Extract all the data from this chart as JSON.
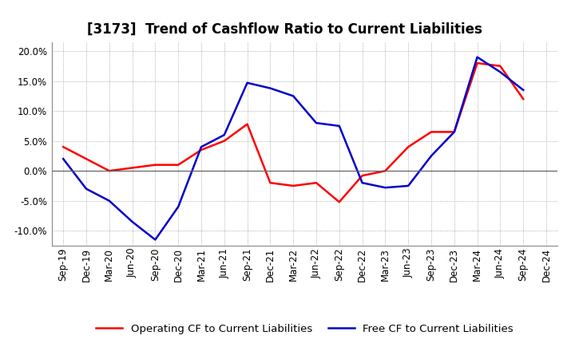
{
  "title": "[3173]  Trend of Cashflow Ratio to Current Liabilities",
  "x_labels": [
    "Sep-19",
    "Dec-19",
    "Mar-20",
    "Jun-20",
    "Sep-20",
    "Dec-20",
    "Mar-21",
    "Jun-21",
    "Sep-21",
    "Dec-21",
    "Mar-22",
    "Jun-22",
    "Sep-22",
    "Dec-22",
    "Mar-23",
    "Jun-23",
    "Sep-23",
    "Dec-23",
    "Mar-24",
    "Jun-24",
    "Sep-24",
    "Dec-24"
  ],
  "operating_cf": [
    0.04,
    0.02,
    0.0,
    0.005,
    0.01,
    0.01,
    0.035,
    0.05,
    0.078,
    -0.02,
    -0.025,
    -0.02,
    -0.052,
    -0.008,
    0.0,
    0.04,
    0.065,
    0.065,
    0.18,
    0.175,
    0.12,
    null
  ],
  "free_cf": [
    0.02,
    -0.03,
    -0.05,
    -0.085,
    -0.115,
    -0.06,
    0.04,
    0.06,
    0.147,
    0.138,
    0.125,
    0.08,
    0.075,
    -0.02,
    -0.028,
    -0.025,
    0.025,
    0.065,
    0.19,
    0.165,
    0.135,
    null
  ],
  "operating_cf_color": "#ff0000",
  "free_cf_color": "#0000cc",
  "ylim": [
    -0.125,
    0.215
  ],
  "yticks": [
    -0.1,
    -0.05,
    0.0,
    0.05,
    0.1,
    0.15,
    0.2
  ],
  "background_color": "#ffffff",
  "plot_bg_color": "#ffffff",
  "grid_color": "#999999",
  "legend_operating": "Operating CF to Current Liabilities",
  "legend_free": "Free CF to Current Liabilities",
  "title_fontsize": 12,
  "axis_fontsize": 8.5,
  "legend_fontsize": 9.5
}
